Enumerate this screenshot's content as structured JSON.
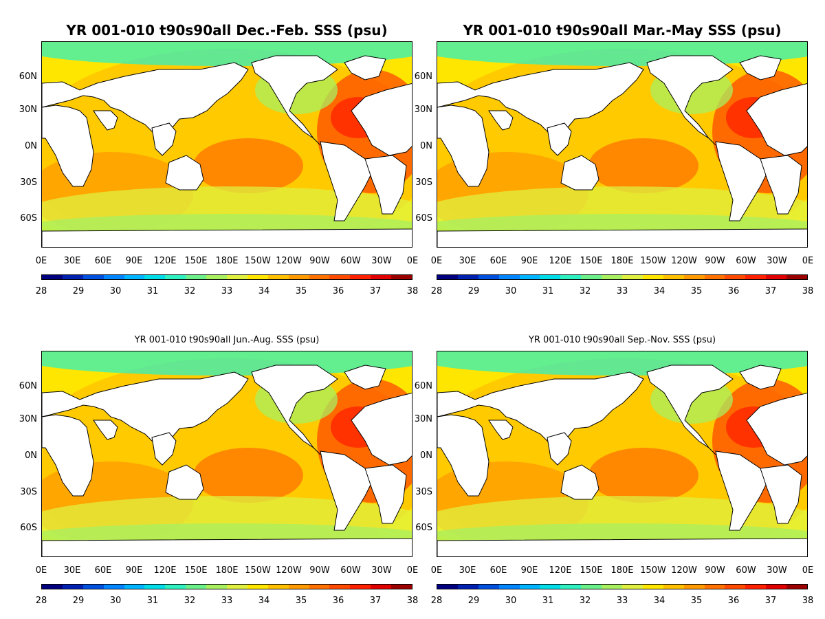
{
  "panels": [
    {
      "title": "YR 001-010 t90s90all Dec.-Feb. SSS (psu)",
      "style": "big"
    },
    {
      "title": "YR 001-010 t90s90all Mar.-May SSS (psu)",
      "style": "big"
    },
    {
      "title": "YR 001-010 t90s90all Jun.-Aug. SSS (psu)",
      "style": "small"
    },
    {
      "title": "YR 001-010 t90s90all Sep.-Nov. SSS (psu)",
      "style": "small"
    }
  ],
  "lat_labels": [
    "60N",
    "30N",
    "0N",
    "30S",
    "60S"
  ],
  "lon_labels": [
    "0E",
    "30E",
    "60E",
    "90E",
    "120E",
    "150E",
    "180E",
    "150W",
    "120W",
    "90W",
    "60W",
    "30W",
    "0E"
  ],
  "colorbar": {
    "ticks": [
      "28",
      "29",
      "30",
      "31",
      "32",
      "33",
      "34",
      "35",
      "36",
      "37",
      "38"
    ],
    "colors": [
      "#00007f",
      "#0020b0",
      "#0050e0",
      "#0085ff",
      "#00b5ff",
      "#00dde8",
      "#2ff0c0",
      "#6bf08a",
      "#a8f060",
      "#e0f040",
      "#ffe600",
      "#ffc000",
      "#ff9a00",
      "#ff7200",
      "#ff4a00",
      "#ff2000",
      "#e00000",
      "#9a0000"
    ]
  },
  "chart_data": {
    "type": "heatmap",
    "variable": "SSS (psu)",
    "value_range": [
      28,
      38
    ],
    "lon_range": [
      0,
      360
    ],
    "lat_range": [
      -80,
      90
    ],
    "seasons": [
      "Dec.-Feb.",
      "Mar.-May",
      "Jun.-Aug.",
      "Sep.-Nov."
    ]
  }
}
